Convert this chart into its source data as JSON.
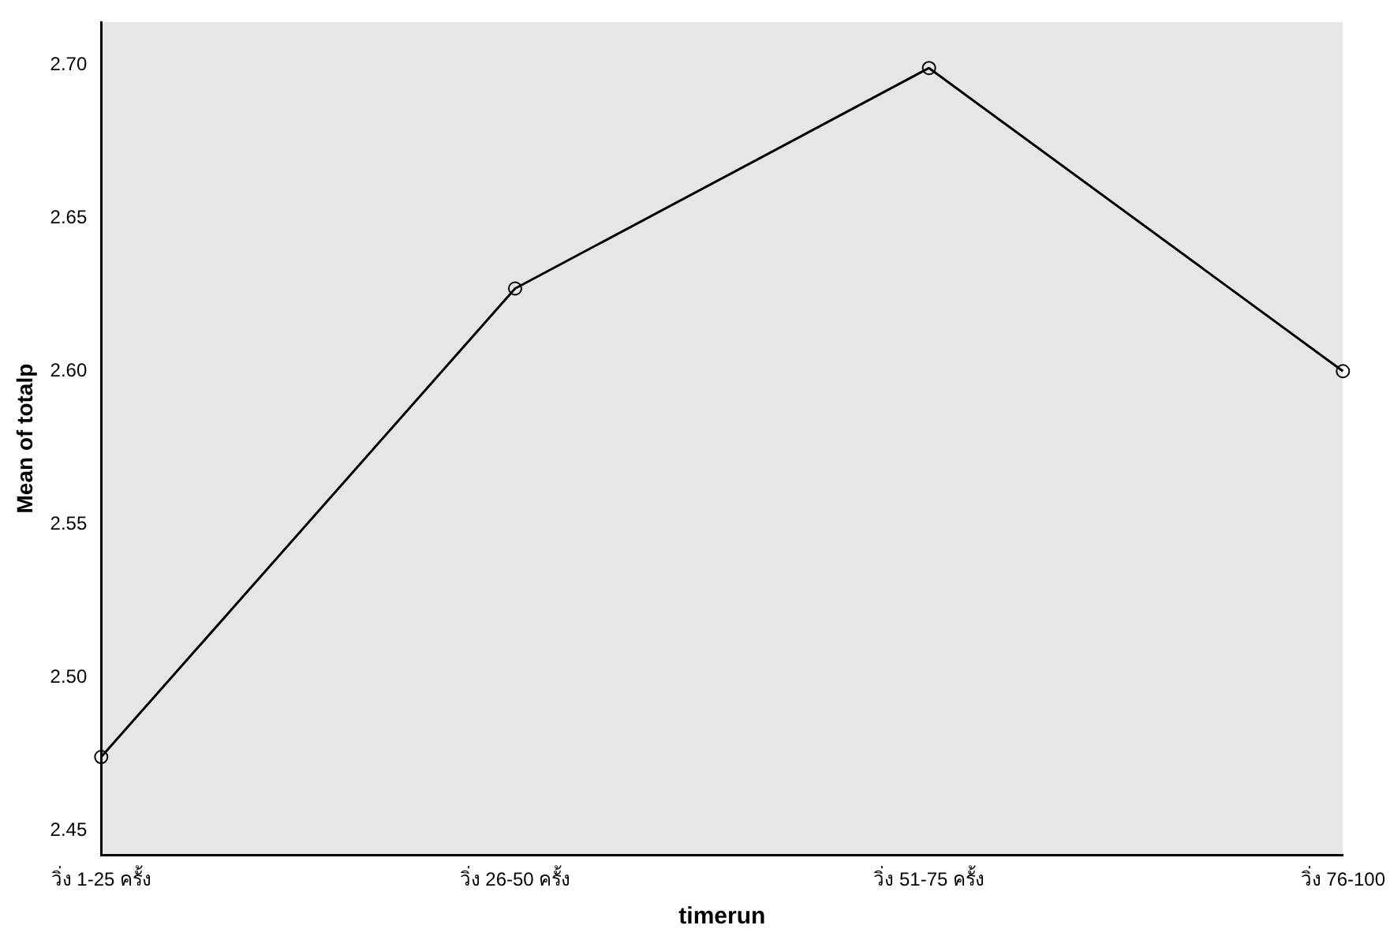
{
  "chart_data": {
    "type": "line",
    "xlabel": "timerun",
    "ylabel": "Mean of totalp",
    "categories": [
      "วิ่ง 1-25 ครั้ง",
      "วิ่ง 26-50 ครั้ง",
      "วิ่ง 51-75 ครั้ง",
      "วิ่ง 76-100"
    ],
    "series": [
      {
        "color": "#000000",
        "values": [
          2.474,
          2.627,
          2.699,
          2.6
        ]
      }
    ],
    "ylim": [
      2.442,
      2.714
    ],
    "yticks": [
      {
        "value": 2.45,
        "label": "2.45"
      },
      {
        "value": 2.5,
        "label": "2.50"
      },
      {
        "value": 2.55,
        "label": "2.55"
      },
      {
        "value": 2.6,
        "label": "2.60"
      },
      {
        "value": 2.65,
        "label": "2.65"
      },
      {
        "value": 2.7,
        "label": "2.70"
      }
    ],
    "grid": false,
    "legend": false,
    "marker": "circle",
    "line_style": "solid"
  }
}
